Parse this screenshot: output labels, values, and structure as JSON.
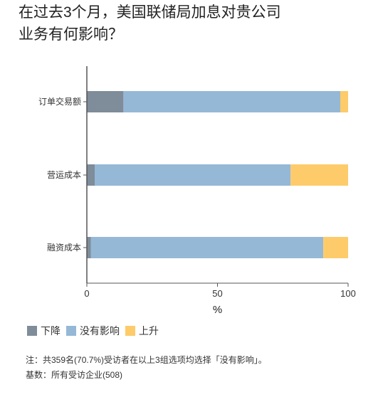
{
  "title_line1": "在过去3个月，美国联储局加息对贵公司",
  "title_line2": "业务有何影响？",
  "colors": {
    "down": "#7f8c99",
    "none": "#95b8d6",
    "up": "#fdcb6a",
    "axis": "#555555"
  },
  "chart_data": {
    "type": "bar",
    "orientation": "horizontal",
    "stacked": true,
    "categories": [
      "订单交易额",
      "营运成本",
      "融资成本"
    ],
    "series": [
      {
        "name": "下降",
        "values": [
          14,
          3,
          1.5
        ]
      },
      {
        "name": "没有影响",
        "values": [
          83,
          75,
          89
        ]
      },
      {
        "name": "上升",
        "values": [
          3,
          22,
          9.5
        ]
      }
    ],
    "xlabel": "%",
    "xlim": [
      0,
      100
    ],
    "xticks": [
      0,
      50,
      100
    ],
    "grid": false,
    "legend_position": "bottom-left"
  },
  "legend": {
    "down": "下降",
    "none": "没有影响",
    "up": "上升"
  },
  "notes": {
    "line1": "注：共359名(70.7%)受访者在以上3组选项均选择「没有影响」。",
    "line2": "基数：所有受访企业(508)"
  }
}
